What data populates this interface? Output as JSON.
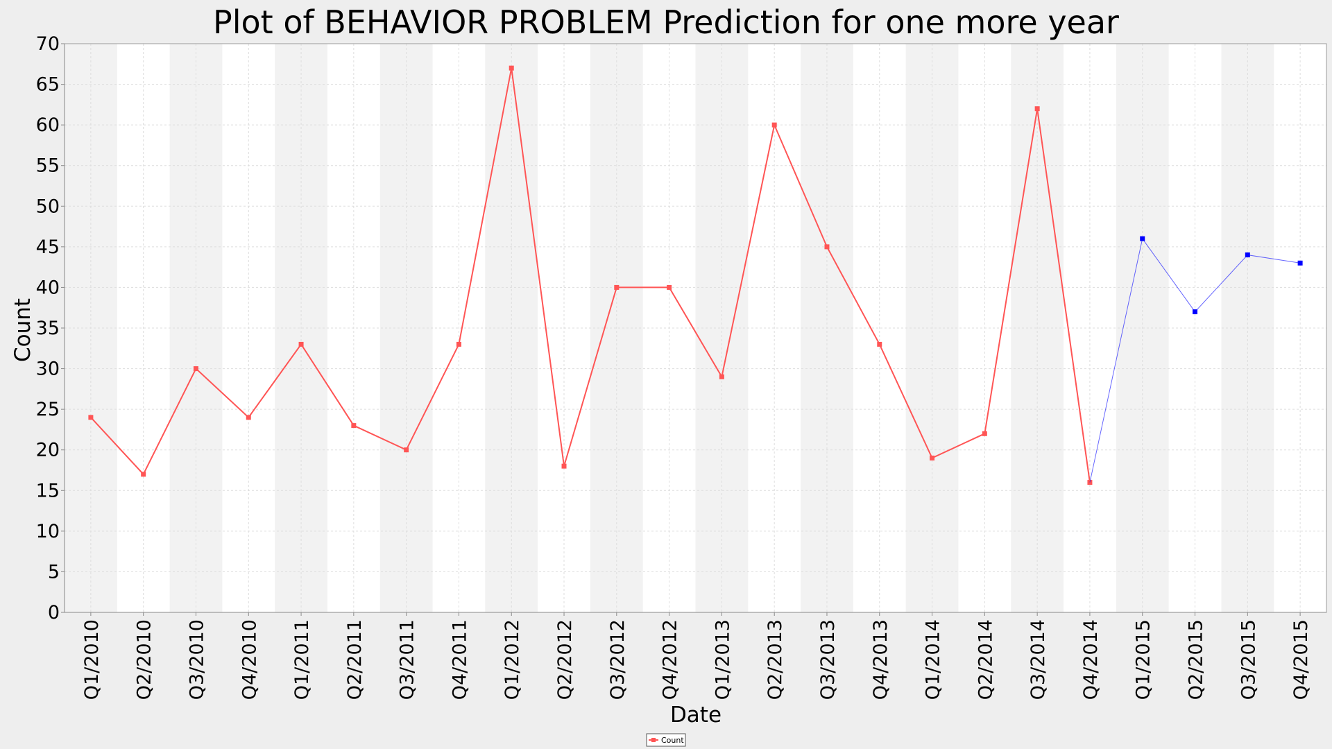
{
  "chart_data": {
    "type": "line",
    "title": "Plot of BEHAVIOR PROBLEM Prediction for one more year",
    "xlabel": "Date",
    "ylabel": "Count",
    "ylim": [
      0,
      70
    ],
    "ytick_step": 5,
    "grid": true,
    "legend_position": "bottom-center",
    "categories": [
      "Q1/2010",
      "Q2/2010",
      "Q3/2010",
      "Q4/2010",
      "Q1/2011",
      "Q2/2011",
      "Q3/2011",
      "Q4/2011",
      "Q1/2012",
      "Q2/2012",
      "Q3/2012",
      "Q4/2012",
      "Q1/2013",
      "Q2/2013",
      "Q3/2013",
      "Q4/2013",
      "Q1/2014",
      "Q2/2014",
      "Q3/2014",
      "Q4/2014",
      "Q1/2015",
      "Q2/2015",
      "Q3/2015",
      "Q4/2015"
    ],
    "series": [
      {
        "name": "Count",
        "color": "#ff5555",
        "values": [
          24,
          17,
          30,
          24,
          33,
          23,
          20,
          33,
          67,
          18,
          40,
          40,
          29,
          60,
          45,
          33,
          19,
          22,
          62,
          16,
          null,
          null,
          null,
          null
        ]
      },
      {
        "color": "#0000ff",
        "values": [
          null,
          null,
          null,
          null,
          null,
          null,
          null,
          null,
          null,
          null,
          null,
          null,
          null,
          null,
          null,
          null,
          null,
          null,
          null,
          16,
          46,
          37,
          44,
          43
        ]
      }
    ]
  },
  "colors": {
    "background": "#eeeeee",
    "plot_background": "#ffffff",
    "band": "#f2f2f2",
    "grid": "#dddddd",
    "series_1": "#ff5555",
    "series_2": "#0000ff"
  }
}
